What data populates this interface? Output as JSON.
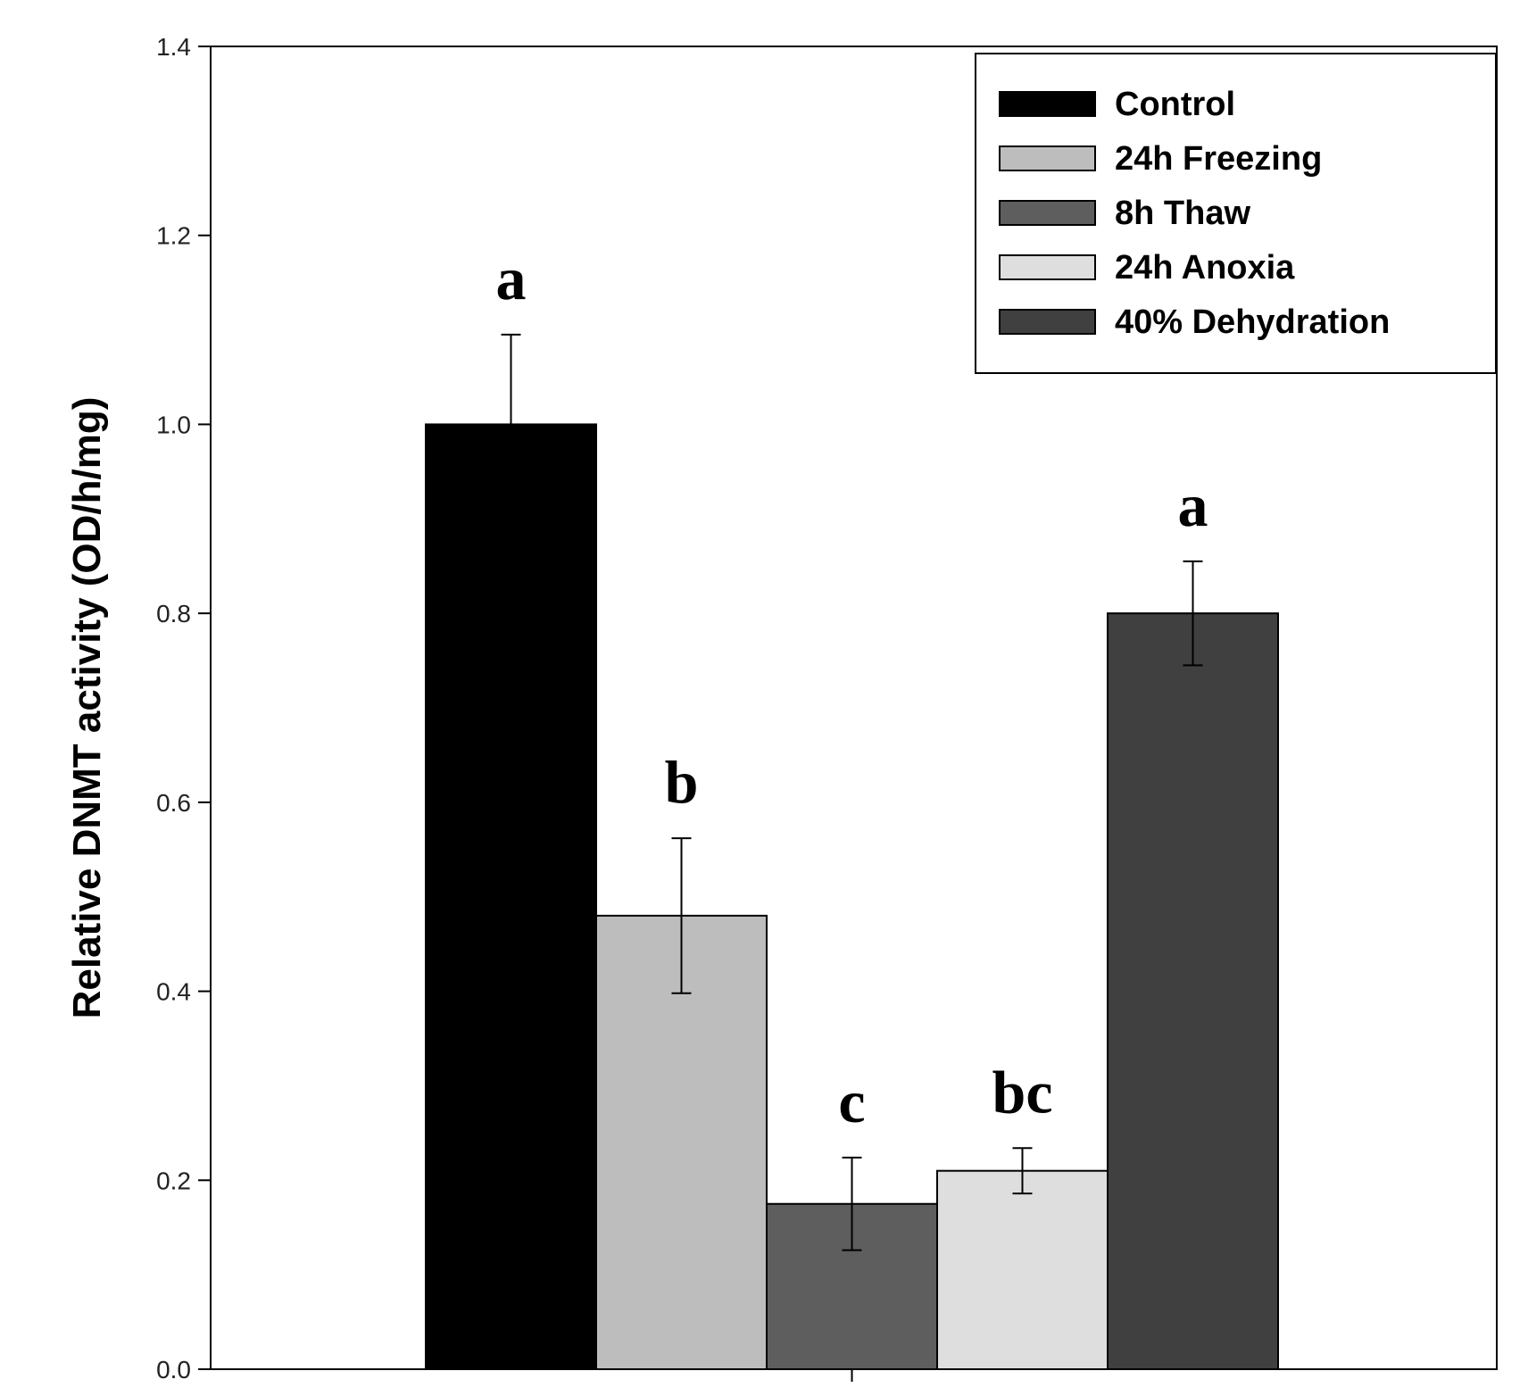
{
  "chart_data": {
    "type": "bar",
    "title": "",
    "xlabel": "",
    "ylabel": "Relative DNMT activity (OD/h/mg)",
    "ylim": [
      0,
      1.4
    ],
    "y_ticks": [
      "0.0",
      "0.2",
      "0.4",
      "0.6",
      "0.8",
      "1.0",
      "1.2",
      "1.4"
    ],
    "y_tick_values": [
      0,
      0.2,
      0.4,
      0.6,
      0.8,
      1.0,
      1.2,
      1.4
    ],
    "grid": false,
    "legend_position": "top-right",
    "series": [
      {
        "name": "Control",
        "value": 1.0,
        "error": 0.095,
        "significance": "a",
        "color": "#000000"
      },
      {
        "name": "24h Freezing",
        "value": 0.48,
        "error": 0.082,
        "significance": "b",
        "color": "#bdbdbd"
      },
      {
        "name": "8h Thaw",
        "value": 0.175,
        "error": 0.049,
        "significance": "c",
        "color": "#5e5e5e"
      },
      {
        "name": "24h Anoxia",
        "value": 0.21,
        "error": 0.024,
        "significance": "bc",
        "color": "#dedede"
      },
      {
        "name": "40% Dehydration",
        "value": 0.8,
        "error": 0.055,
        "significance": "a",
        "color": "#404040"
      }
    ]
  }
}
